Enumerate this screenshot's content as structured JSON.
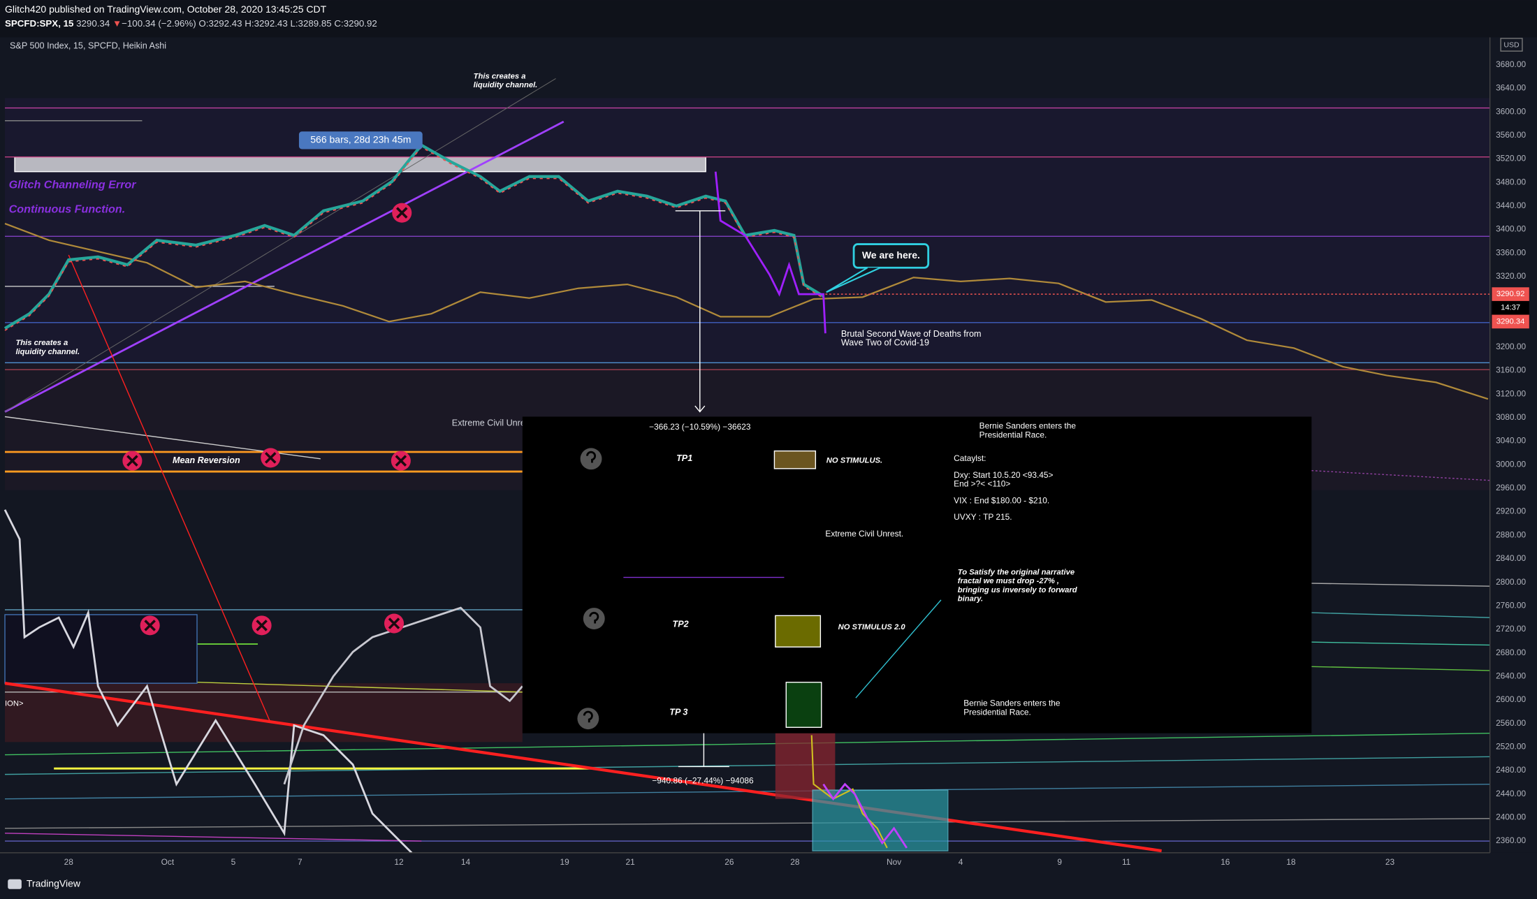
{
  "header": {
    "author_line": "Glitch420 published on TradingView.com, October 28, 2020 13:45:25 CDT",
    "symbol": "SPCFD:SPX, 15",
    "last": "3290.34",
    "direction": "▼",
    "change": "−100.34 (−2.96%)",
    "open": "O:3292.43",
    "high": "H:3292.43",
    "low": "L:3289.85",
    "close": "C:3290.92"
  },
  "chart_title": "S&P 500 Index, 15, SPCFD, Heikin Ashi",
  "price_axis": {
    "currency": "USD",
    "labels": [
      "3680.00",
      "3640.00",
      "3600.00",
      "3560.00",
      "3520.00",
      "3480.00",
      "3440.00",
      "3400.00",
      "3360.00",
      "3320.00",
      "3280.00",
      "3240.00",
      "3200.00",
      "3160.00",
      "3120.00",
      "3080.00",
      "3040.00",
      "3000.00",
      "2960.00",
      "2920.00",
      "2880.00",
      "2840.00",
      "2800.00",
      "2760.00",
      "2720.00",
      "2680.00",
      "2640.00",
      "2600.00",
      "2560.00",
      "2520.00",
      "2480.00",
      "2440.00",
      "2400.00",
      "2360.00"
    ],
    "tags": [
      "3290.92",
      "14:37",
      "3290.34"
    ]
  },
  "time_axis": {
    "labels": [
      "28",
      "Oct",
      "5",
      "7",
      "12",
      "14",
      "19",
      "21",
      "26",
      "28",
      "Nov",
      "4",
      "9",
      "11",
      "16",
      "18",
      "23"
    ]
  },
  "annotations": {
    "liquidity_top": [
      "This creates a",
      "liquidity channel."
    ],
    "liquidity_left": [
      "This creates a",
      "liquidity channel."
    ],
    "bars_range": "566 bars, 28d 23h 45m",
    "glitch": "Glitch Channeling Error",
    "continuous": "Continuous Function.",
    "we_are_here": "We are here.",
    "second_wave": [
      "Brutal Second Wave of Deaths from",
      "Wave Two of Covid-19"
    ],
    "civil_unrest_behind": "Extreme Civil Unrest.",
    "mean_reversion": "Mean Reversion",
    "ion": "ION>",
    "measure_1": "−366.23 (−10.59%) −36623",
    "measure_2": "−940.86 (−27.44%) −94086"
  },
  "panel": {
    "tp1": "TP1",
    "tp1_note": "NO STIMULUS.",
    "tp2": "TP2",
    "tp2_note": "NO STIMULUS 2.0",
    "tp3": "TP 3",
    "civil_unrest": "Extreme Civil Unrest.",
    "bernie_top": [
      "Bernie Sanders enters the",
      "Presidential Race."
    ],
    "bernie_bottom": [
      "Bernie Sanders enters the",
      "Presidential Race."
    ],
    "catalyst": [
      "Cataylst:",
      "Dxy: Start 10.5.20 <93.45>",
      "End >?< <110>",
      "VIX : End $180.00 - $210.",
      "UVXY : TP 215."
    ],
    "narrative": [
      "To Satisfy the original narrative",
      "fractal we must drop -27% ,",
      "bringing us inversely to forward",
      "binary."
    ]
  },
  "footer": "TradingView"
}
